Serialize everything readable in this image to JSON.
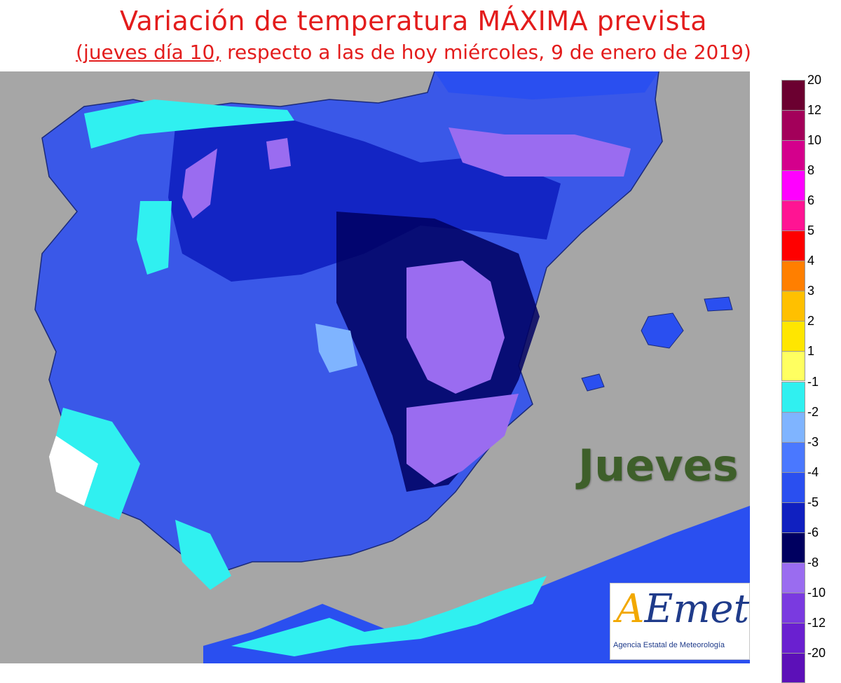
{
  "header": {
    "title": "Variación de temperatura MÁXIMA prevista",
    "subtitle_underlined": "(jueves día 10,",
    "subtitle_rest": " respecto a las de hoy miércoles, 9 de enero de 2019)"
  },
  "map": {
    "day_label": "Jueves",
    "land_color": "#3a58e8",
    "sea_color": "#a6a6a6"
  },
  "logo": {
    "mark_a": "A",
    "mark_rest": "Emet",
    "agency": "Agencia Estatal de Meteorología"
  },
  "legend_positive": [
    {
      "label": "20",
      "color": "#6b0030"
    },
    {
      "label": "12",
      "color": "#a3005a"
    },
    {
      "label": "10",
      "color": "#d4008c"
    },
    {
      "label": "8",
      "color": "#ff00ff"
    },
    {
      "label": "6",
      "color": "#ff1493"
    },
    {
      "label": "5",
      "color": "#ff0000"
    },
    {
      "label": "4",
      "color": "#ff7f00"
    },
    {
      "label": "3",
      "color": "#ffc000"
    },
    {
      "label": "2",
      "color": "#ffe600"
    },
    {
      "label": "1",
      "color": "#ffff60"
    }
  ],
  "legend_negative": [
    {
      "label": "-1",
      "color": "#30f0f0"
    },
    {
      "label": "-2",
      "color": "#7fb4ff"
    },
    {
      "label": "-3",
      "color": "#4a78ff"
    },
    {
      "label": "-4",
      "color": "#2a4ff0"
    },
    {
      "label": "-5",
      "color": "#1020c0"
    },
    {
      "label": "-6",
      "color": "#000060"
    },
    {
      "label": "-8",
      "color": "#9a6cf0"
    },
    {
      "label": "-10",
      "color": "#7a3ae0"
    },
    {
      "label": "-12",
      "color": "#6a20d0"
    },
    {
      "label": "-20",
      "color": "#5c10b8"
    }
  ]
}
